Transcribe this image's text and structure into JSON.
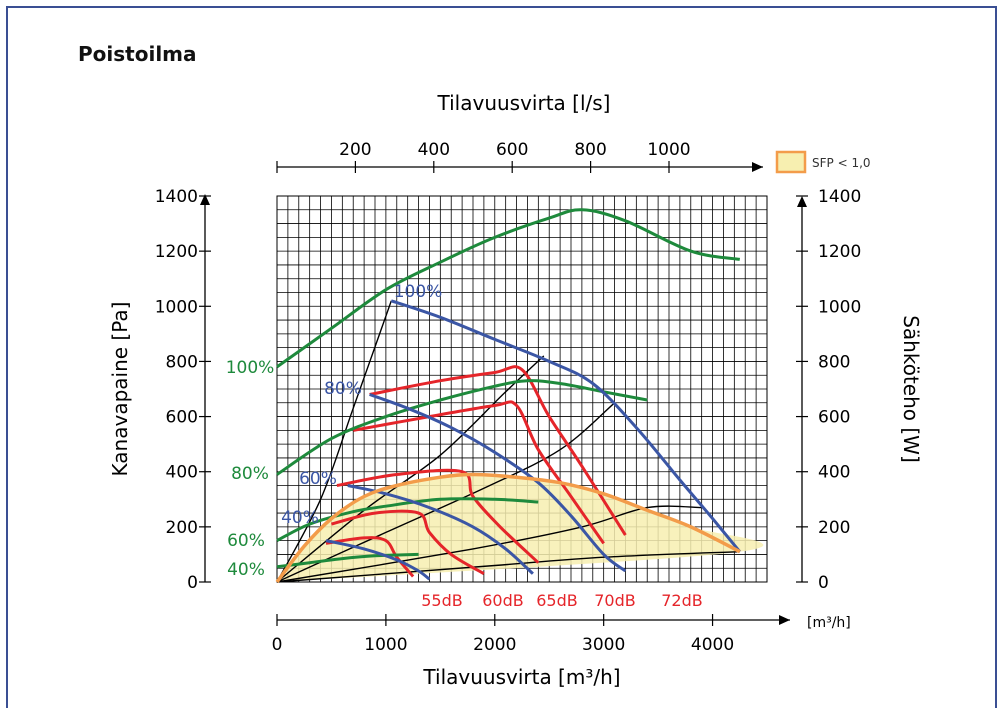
{
  "header": {
    "title": "Poistoilma"
  },
  "chart_data": {
    "type": "line",
    "top_axis": {
      "label": "Tilavuusvirta [l/s]",
      "ticks": [
        "200",
        "400",
        "600",
        "800",
        "1000"
      ],
      "tick_values": [
        200,
        400,
        600,
        800,
        1000
      ]
    },
    "xlabel": "Tilavuusvirta [m³/h]",
    "x_unit_label": "[m³/h]",
    "xlim": [
      0,
      4500
    ],
    "x_ticks": [
      "0",
      "1000",
      "2000",
      "3000",
      "4000"
    ],
    "x_tick_values": [
      0,
      1000,
      2000,
      3000,
      4000
    ],
    "ylabel_left": "Kanavapaine [Pa]",
    "ylabel_right": "Sähköteho [W]",
    "ylim": [
      0,
      1400
    ],
    "y_ticks": [
      "0",
      "200",
      "400",
      "600",
      "800",
      "1000",
      "1200",
      "1400"
    ],
    "y_tick_values": [
      0,
      200,
      400,
      600,
      800,
      1000,
      1200,
      1400
    ],
    "grid": true,
    "legend": {
      "label": "SFP < 1,0",
      "position": "top-right",
      "color": "#f7efb0",
      "border": "#f39c4a"
    },
    "colors": {
      "green": "#1e8a3c",
      "blue": "#3b56a5",
      "red": "#e5252a",
      "orange": "#f39c4a",
      "black": "#000000",
      "sfp_fill": "#f7efb0"
    },
    "series": [
      {
        "label": "100%",
        "group": "power",
        "color": "#1e8a3c",
        "points": [
          [
            0,
            780
          ],
          [
            500,
            920
          ],
          [
            1000,
            1060
          ],
          [
            1500,
            1160
          ],
          [
            2000,
            1250
          ],
          [
            2500,
            1320
          ],
          [
            2800,
            1350
          ],
          [
            3200,
            1310
          ],
          [
            3800,
            1200
          ],
          [
            4250,
            1170
          ]
        ]
      },
      {
        "label": "80%",
        "group": "power",
        "color": "#1e8a3c",
        "points": [
          [
            0,
            390
          ],
          [
            500,
            520
          ],
          [
            1000,
            600
          ],
          [
            1500,
            660
          ],
          [
            2000,
            710
          ],
          [
            2300,
            730
          ],
          [
            2600,
            720
          ],
          [
            3000,
            690
          ],
          [
            3400,
            660
          ]
        ]
      },
      {
        "label": "60%",
        "group": "power",
        "color": "#1e8a3c",
        "points": [
          [
            0,
            150
          ],
          [
            300,
            210
          ],
          [
            700,
            255
          ],
          [
            1000,
            275
          ],
          [
            1500,
            300
          ],
          [
            2000,
            300
          ],
          [
            2400,
            290
          ]
        ]
      },
      {
        "label": "40%",
        "group": "power",
        "color": "#1e8a3c",
        "points": [
          [
            0,
            55
          ],
          [
            300,
            70
          ],
          [
            600,
            85
          ],
          [
            900,
            95
          ],
          [
            1300,
            100
          ]
        ]
      },
      {
        "label": "100%",
        "group": "pressure",
        "color": "#3b56a5",
        "points": [
          [
            1050,
            1020
          ],
          [
            1500,
            960
          ],
          [
            2000,
            880
          ],
          [
            2500,
            800
          ],
          [
            2900,
            720
          ],
          [
            3300,
            560
          ],
          [
            3700,
            370
          ],
          [
            4000,
            230
          ],
          [
            4250,
            110
          ]
        ]
      },
      {
        "label": "80%",
        "group": "pressure",
        "color": "#3b56a5",
        "points": [
          [
            850,
            680
          ],
          [
            1200,
            630
          ],
          [
            1600,
            560
          ],
          [
            2000,
            470
          ],
          [
            2400,
            360
          ],
          [
            2700,
            240
          ],
          [
            3000,
            100
          ],
          [
            3200,
            40
          ]
        ]
      },
      {
        "label": "60%",
        "group": "pressure",
        "color": "#3b56a5",
        "points": [
          [
            650,
            350
          ],
          [
            1000,
            320
          ],
          [
            1400,
            270
          ],
          [
            1800,
            200
          ],
          [
            2100,
            120
          ],
          [
            2350,
            30
          ]
        ]
      },
      {
        "label": "40%",
        "group": "pressure",
        "color": "#3b56a5",
        "points": [
          [
            450,
            150
          ],
          [
            800,
            120
          ],
          [
            1100,
            80
          ],
          [
            1300,
            40
          ],
          [
            1400,
            10
          ]
        ]
      }
    ],
    "sound_curves": [
      {
        "label": "55dB",
        "color": "#e5252a",
        "points": [
          [
            450,
            140
          ],
          [
            800,
            160
          ],
          [
            1000,
            150
          ],
          [
            1100,
            90
          ],
          [
            1250,
            20
          ]
        ]
      },
      {
        "label": "60dB",
        "color": "#e5252a",
        "points": [
          [
            500,
            210
          ],
          [
            900,
            250
          ],
          [
            1300,
            250
          ],
          [
            1400,
            180
          ],
          [
            1600,
            100
          ],
          [
            1900,
            30
          ]
        ]
      },
      {
        "label": "65dB",
        "color": "#e5252a",
        "points": [
          [
            550,
            350
          ],
          [
            1100,
            390
          ],
          [
            1700,
            400
          ],
          [
            1800,
            310
          ],
          [
            2050,
            200
          ],
          [
            2400,
            70
          ]
        ]
      },
      {
        "label": "70dB",
        "color": "#e5252a",
        "points": [
          [
            700,
            550
          ],
          [
            1400,
            600
          ],
          [
            2000,
            640
          ],
          [
            2200,
            640
          ],
          [
            2400,
            480
          ],
          [
            2700,
            310
          ],
          [
            3000,
            140
          ]
        ]
      },
      {
        "label": "72dB",
        "color": "#e5252a",
        "points": [
          [
            850,
            680
          ],
          [
            1500,
            730
          ],
          [
            2000,
            760
          ],
          [
            2250,
            770
          ],
          [
            2500,
            600
          ],
          [
            2800,
            420
          ],
          [
            3200,
            170
          ]
        ]
      }
    ],
    "system_curves": [
      [
        [
          0,
          0
        ],
        [
          400,
          300
        ],
        [
          700,
          630
        ],
        [
          1050,
          1020
        ]
      ],
      [
        [
          0,
          0
        ],
        [
          800,
          260
        ],
        [
          1500,
          460
        ],
        [
          2100,
          690
        ],
        [
          2450,
          820
        ]
      ],
      [
        [
          0,
          0
        ],
        [
          1000,
          180
        ],
        [
          1900,
          340
        ],
        [
          2600,
          480
        ],
        [
          3100,
          650
        ]
      ],
      [
        [
          0,
          0
        ],
        [
          1800,
          120
        ],
        [
          2800,
          200
        ],
        [
          3400,
          270
        ],
        [
          3900,
          270
        ]
      ],
      [
        [
          0,
          0
        ],
        [
          2000,
          60
        ],
        [
          3000,
          90
        ],
        [
          4250,
          110
        ]
      ]
    ],
    "sfp_region": [
      [
        0,
        0
      ],
      [
        250,
        130
      ],
      [
        500,
        230
      ],
      [
        800,
        310
      ],
      [
        1100,
        350
      ],
      [
        1500,
        380
      ],
      [
        1800,
        390
      ],
      [
        2200,
        380
      ],
      [
        2600,
        360
      ],
      [
        3000,
        320
      ],
      [
        3400,
        260
      ],
      [
        3800,
        200
      ],
      [
        4250,
        110
      ],
      [
        0,
        0
      ]
    ],
    "labels": {
      "power": [
        "100%",
        "80%",
        "60%",
        "40%"
      ],
      "pressure": [
        "100%",
        "80%",
        "60%",
        "40%"
      ],
      "sound": [
        "55dB",
        "60dB",
        "65dB",
        "70dB",
        "72dB"
      ]
    }
  }
}
